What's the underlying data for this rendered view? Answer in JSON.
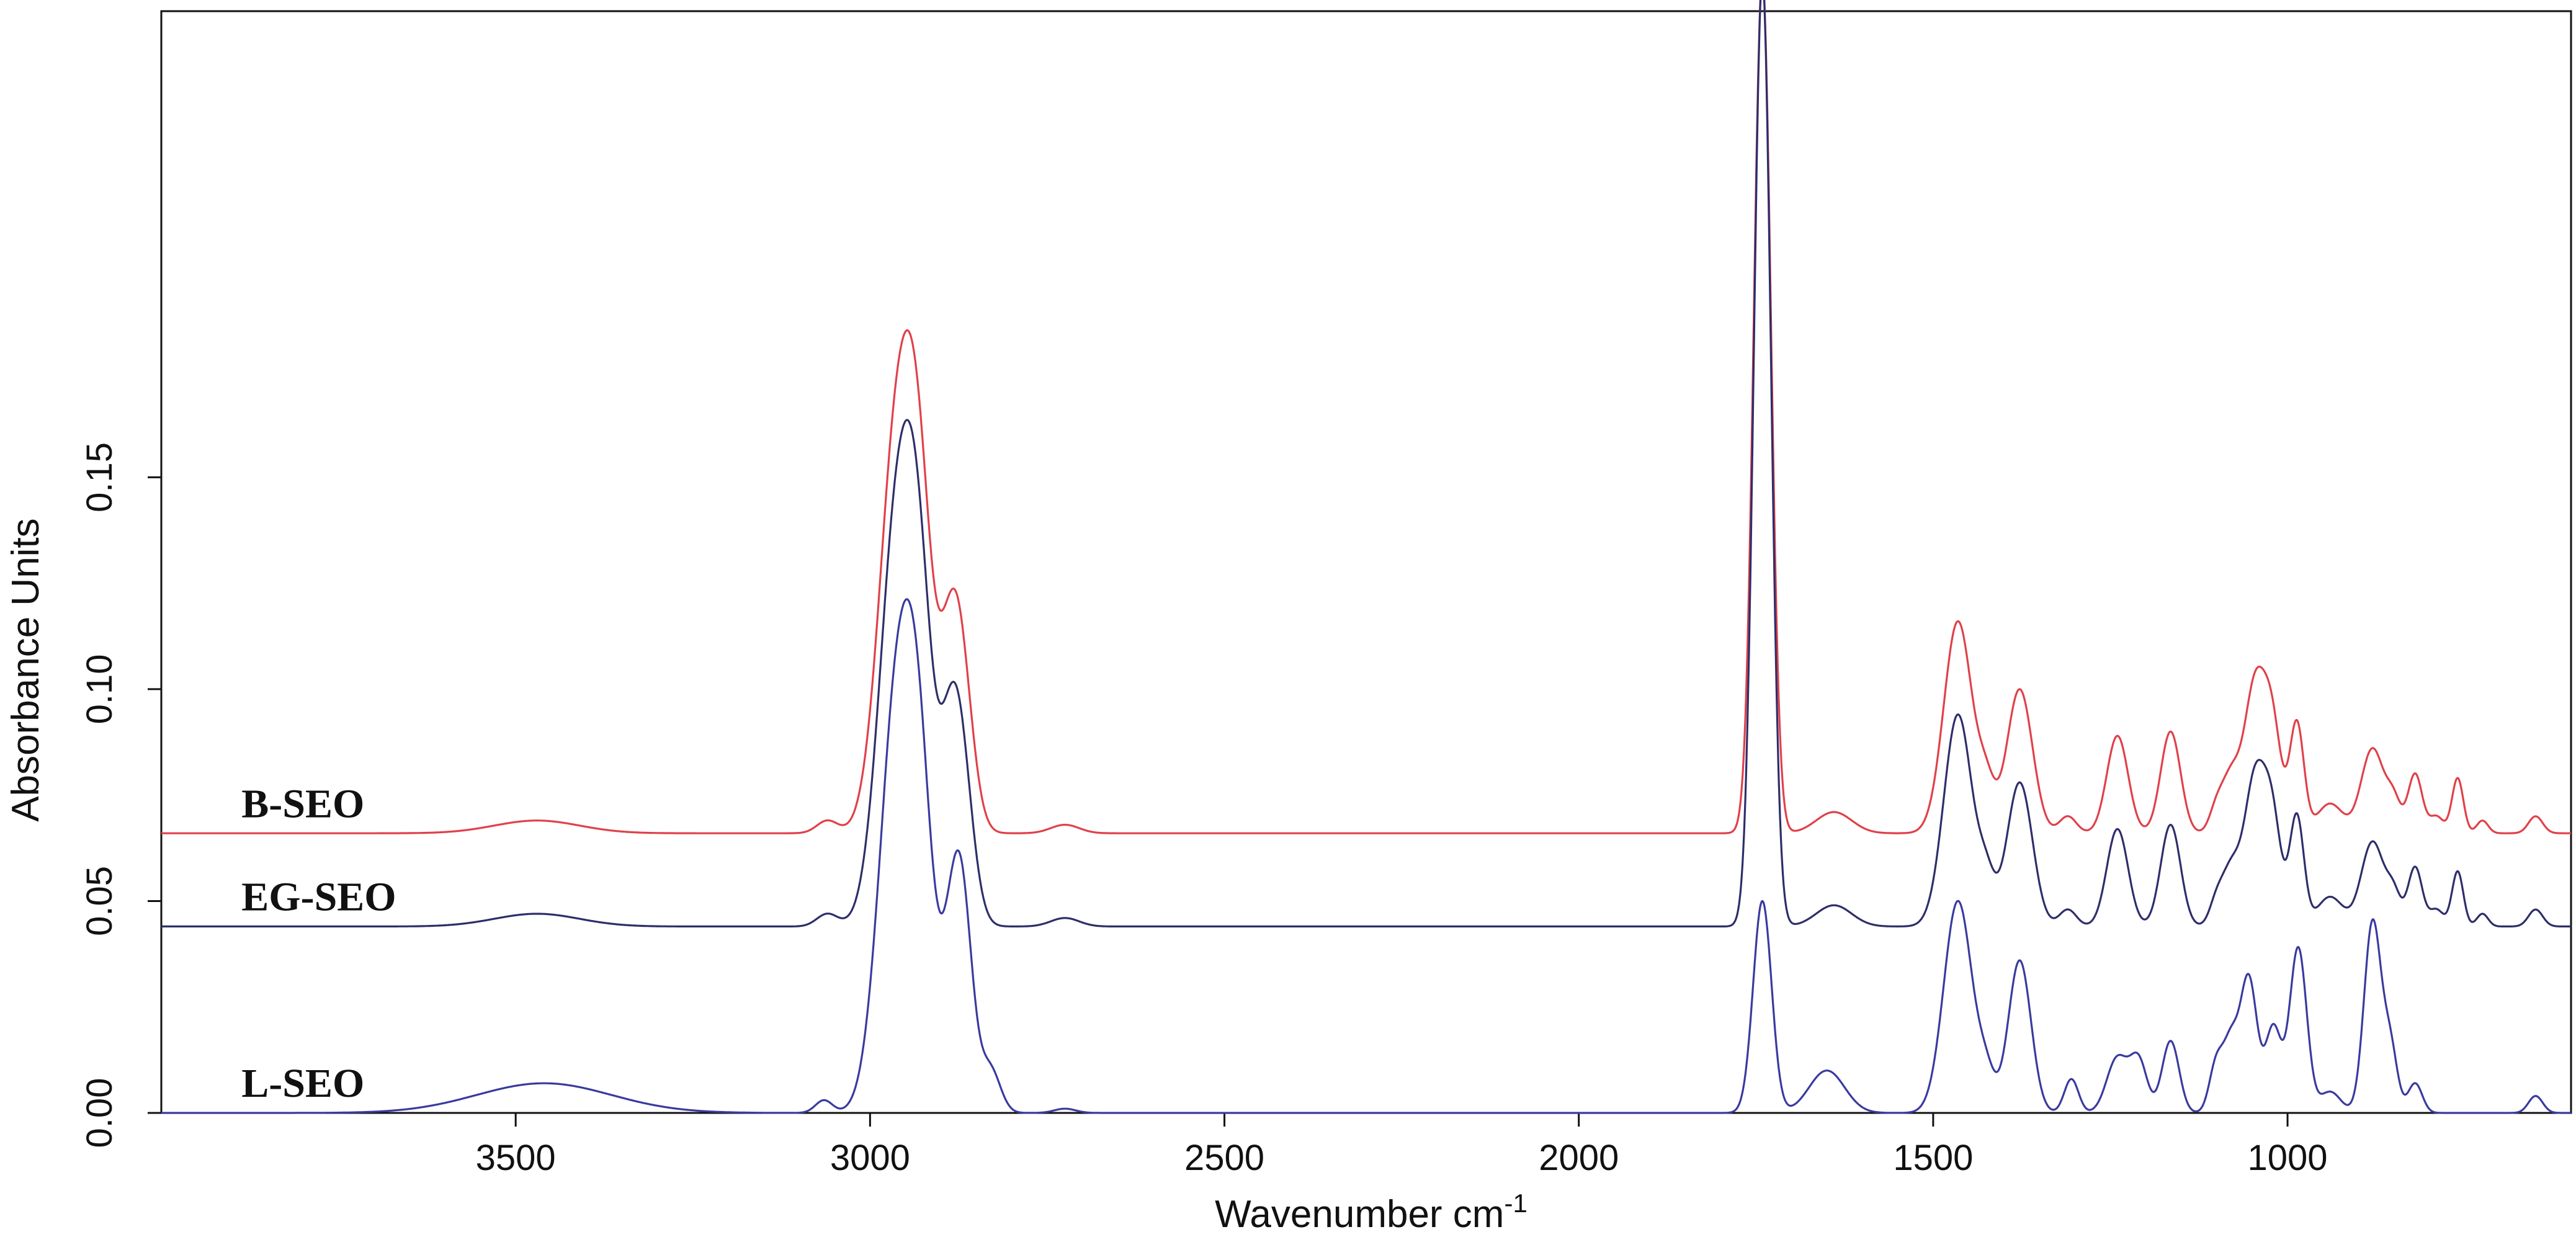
{
  "chart_data": {
    "type": "line",
    "title": "",
    "xlabel": "Wavenumber cm",
    "xlabel_superscript": "-1",
    "ylabel": "Absorbance Units",
    "xlim": [
      4000,
      600
    ],
    "ylim": [
      0.0,
      0.26
    ],
    "x_reversed": true,
    "grid": false,
    "legend": "inline-left",
    "x_ticks": [
      3500,
      3000,
      2500,
      2000,
      1500,
      1000
    ],
    "x_tick_labels": [
      "3500",
      "3000",
      "2500",
      "2000",
      "1500",
      "1000"
    ],
    "y_ticks": [
      0.0,
      0.05,
      0.1,
      0.15
    ],
    "y_tick_labels": [
      "0.00",
      "0.05",
      "0.10",
      "0.15"
    ],
    "series": [
      {
        "name": "B-SEO",
        "color": "#e0414a",
        "baseline": 0.066,
        "label_at": [
          3900,
          0.073
        ],
        "peaks": [
          [
            3470,
            0.003,
            60
          ],
          [
            3060,
            0.003,
            15
          ],
          [
            2962,
            0.092,
            25
          ],
          [
            2930,
            0.06,
            20
          ],
          [
            2890,
            0.015,
            15
          ],
          [
            2875,
            0.044,
            18
          ],
          [
            2725,
            0.002,
            20
          ],
          [
            1741,
            0.202,
            12
          ],
          [
            1640,
            0.005,
            25
          ],
          [
            1465,
            0.05,
            20
          ],
          [
            1425,
            0.01,
            12
          ],
          [
            1378,
            0.034,
            18
          ],
          [
            1310,
            0.004,
            12
          ],
          [
            1240,
            0.023,
            15
          ],
          [
            1165,
            0.024,
            14
          ],
          [
            1100,
            0.006,
            10
          ],
          [
            1080,
            0.012,
            12
          ],
          [
            1045,
            0.036,
            16
          ],
          [
            1020,
            0.02,
            12
          ],
          [
            987,
            0.026,
            10
          ],
          [
            940,
            0.007,
            18
          ],
          [
            880,
            0.02,
            16
          ],
          [
            850,
            0.007,
            10
          ],
          [
            820,
            0.014,
            10
          ],
          [
            790,
            0.004,
            10
          ],
          [
            760,
            0.013,
            8
          ],
          [
            725,
            0.003,
            8
          ],
          [
            650,
            0.004,
            10
          ]
        ]
      },
      {
        "name": "EG-SEO",
        "color": "#2e2e6b",
        "baseline": 0.044,
        "label_at": [
          3900,
          0.051
        ],
        "peaks": [
          [
            3470,
            0.003,
            60
          ],
          [
            3060,
            0.003,
            15
          ],
          [
            2962,
            0.093,
            25
          ],
          [
            2930,
            0.06,
            20
          ],
          [
            2890,
            0.015,
            15
          ],
          [
            2875,
            0.044,
            18
          ],
          [
            2725,
            0.002,
            20
          ],
          [
            1741,
            0.224,
            12
          ],
          [
            1640,
            0.005,
            25
          ],
          [
            1465,
            0.05,
            20
          ],
          [
            1425,
            0.01,
            12
          ],
          [
            1378,
            0.034,
            18
          ],
          [
            1310,
            0.004,
            12
          ],
          [
            1240,
            0.023,
            15
          ],
          [
            1165,
            0.024,
            14
          ],
          [
            1100,
            0.006,
            10
          ],
          [
            1080,
            0.012,
            12
          ],
          [
            1045,
            0.036,
            16
          ],
          [
            1020,
            0.02,
            12
          ],
          [
            987,
            0.026,
            10
          ],
          [
            940,
            0.007,
            18
          ],
          [
            880,
            0.02,
            16
          ],
          [
            850,
            0.007,
            10
          ],
          [
            820,
            0.014,
            10
          ],
          [
            790,
            0.004,
            10
          ],
          [
            760,
            0.013,
            8
          ],
          [
            725,
            0.003,
            8
          ],
          [
            650,
            0.004,
            10
          ]
        ]
      },
      {
        "name": "L-SEO",
        "color": "#3a3aa0",
        "baseline": 0.0,
        "label_at": [
          3900,
          0.007
        ],
        "peaks": [
          [
            3460,
            0.007,
            95
          ],
          [
            3065,
            0.003,
            12
          ],
          [
            2962,
            0.095,
            25
          ],
          [
            2930,
            0.06,
            20
          ],
          [
            2890,
            0.015,
            15
          ],
          [
            2872,
            0.052,
            16
          ],
          [
            2830,
            0.01,
            14
          ],
          [
            2725,
            0.001,
            15
          ],
          [
            1741,
            0.05,
            13
          ],
          [
            1650,
            0.01,
            25
          ],
          [
            1465,
            0.05,
            20
          ],
          [
            1425,
            0.008,
            12
          ],
          [
            1378,
            0.036,
            16
          ],
          [
            1305,
            0.008,
            10
          ],
          [
            1240,
            0.013,
            15
          ],
          [
            1210,
            0.012,
            12
          ],
          [
            1165,
            0.017,
            12
          ],
          [
            1100,
            0.012,
            10
          ],
          [
            1080,
            0.015,
            10
          ],
          [
            1055,
            0.032,
            12
          ],
          [
            1020,
            0.02,
            11
          ],
          [
            985,
            0.039,
            12
          ],
          [
            940,
            0.005,
            15
          ],
          [
            880,
            0.045,
            12
          ],
          [
            855,
            0.015,
            10
          ],
          [
            820,
            0.007,
            10
          ],
          [
            650,
            0.004,
            10
          ]
        ]
      }
    ]
  }
}
